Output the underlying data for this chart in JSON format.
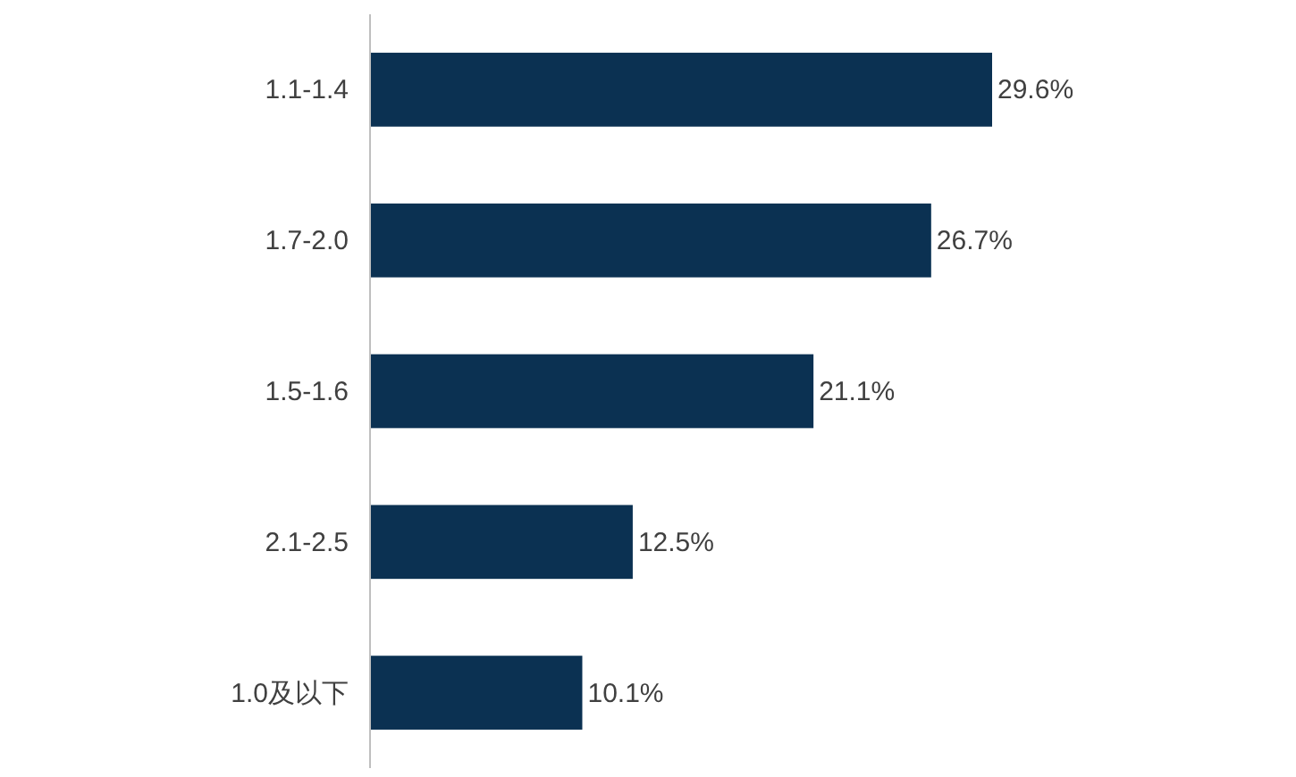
{
  "chart_data": {
    "type": "bar",
    "orientation": "horizontal",
    "categories": [
      "1.1-1.4",
      "1.7-2.0",
      "1.5-1.6",
      "2.1-2.5",
      "1.0及以下"
    ],
    "values": [
      29.6,
      26.7,
      21.1,
      12.5,
      10.1
    ],
    "value_labels": [
      "29.6%",
      "26.7%",
      "21.1%",
      "12.5%",
      "10.1%"
    ],
    "color": "#0b3152"
  }
}
